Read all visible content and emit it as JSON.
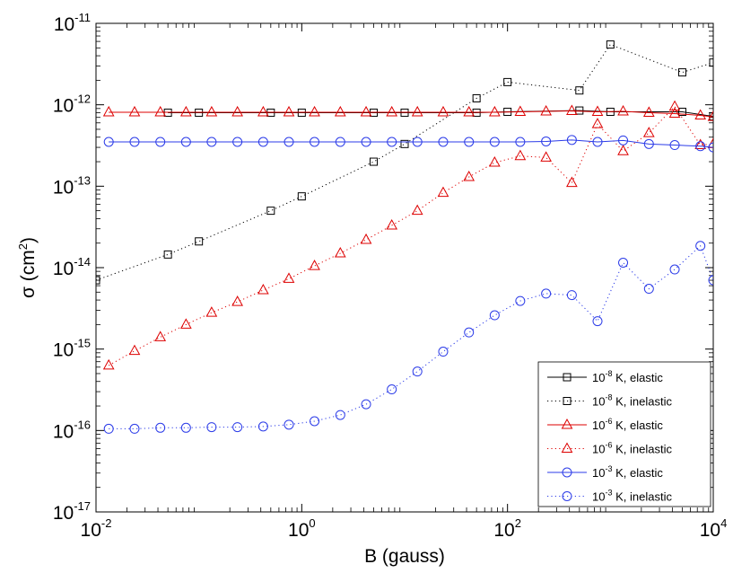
{
  "chart_data": {
    "type": "line",
    "title": "",
    "xlabel": "B (gauss)",
    "ylabel_parts": {
      "main": "σ (cm",
      "exp": "2",
      "close": ")"
    },
    "xscale": "log",
    "yscale": "log",
    "xlim": [
      0.01,
      10000
    ],
    "ylim": [
      1e-17,
      1e-11
    ],
    "grid": false,
    "legend_position": "bottom-right",
    "x_ticks": [
      {
        "value": 0.01,
        "base": "10",
        "exp": "-2"
      },
      {
        "value": 1,
        "base": "10",
        "exp": "0"
      },
      {
        "value": 100,
        "base": "10",
        "exp": "2"
      },
      {
        "value": 10000,
        "base": "10",
        "exp": "4"
      }
    ],
    "y_ticks": [
      {
        "value": 1e-17,
        "base": "10",
        "exp": "-17"
      },
      {
        "value": 1e-16,
        "base": "10",
        "exp": "-16"
      },
      {
        "value": 1e-15,
        "base": "10",
        "exp": "-15"
      },
      {
        "value": 1e-14,
        "base": "10",
        "exp": "-14"
      },
      {
        "value": 1e-13,
        "base": "10",
        "exp": "-13"
      },
      {
        "value": 1e-12,
        "base": "10",
        "exp": "-12"
      },
      {
        "value": 1e-11,
        "base": "10",
        "exp": "-11"
      }
    ],
    "series": [
      {
        "name": "1e-8 K elastic",
        "label": {
          "base": "10",
          "exp": "-8",
          "rest": " K, elastic"
        },
        "color": "#000000",
        "dash": "solid",
        "marker": "square",
        "x": [
          0.05,
          0.1,
          0.5,
          1,
          5,
          10,
          50,
          100,
          500,
          1000,
          5000,
          10000
        ],
        "y": [
          8e-13,
          8e-13,
          8e-13,
          8e-13,
          8e-13,
          8e-13,
          8e-13,
          8.2e-13,
          8.5e-13,
          8.2e-13,
          8.2e-13,
          7.2e-13
        ]
      },
      {
        "name": "1e-8 K inelastic",
        "label": {
          "base": "10",
          "exp": "-8",
          "rest": " K, inelastic"
        },
        "color": "#000000",
        "dash": "dotted",
        "marker": "square",
        "x": [
          0.01,
          0.05,
          0.1,
          0.5,
          1,
          5,
          10,
          50,
          100,
          500,
          1000,
          5000,
          10000
        ],
        "y": [
          7e-15,
          1.45e-14,
          2.1e-14,
          5e-14,
          7.5e-14,
          2e-13,
          3.3e-13,
          1.2e-12,
          1.9e-12,
          1.5e-12,
          5.5e-12,
          2.5e-12,
          3.3e-12
        ]
      },
      {
        "name": "1e-6 K elastic",
        "label": {
          "base": "10",
          "exp": "-6",
          "rest": " K, elastic"
        },
        "color": "#dd0000",
        "dash": "solid",
        "marker": "triangle",
        "x": [
          0.0133,
          0.0237,
          0.0422,
          0.075,
          0.133,
          0.237,
          0.422,
          0.75,
          1.33,
          2.37,
          4.22,
          7.5,
          13.3,
          23.7,
          42.2,
          75,
          133,
          237,
          422,
          750,
          1330,
          2370,
          4220,
          7500,
          10000
        ],
        "y": [
          8.1e-13,
          8.1e-13,
          8.1e-13,
          8.1e-13,
          8.1e-13,
          8.1e-13,
          8.1e-13,
          8.1e-13,
          8.1e-13,
          8.1e-13,
          8.1e-13,
          8.1e-13,
          8.1e-13,
          8.1e-13,
          8.1e-13,
          8.1e-13,
          8.2e-13,
          8.3e-13,
          8.4e-13,
          8.2e-13,
          8.3e-13,
          8e-13,
          7.8e-13,
          7.4e-13,
          7.1e-13
        ]
      },
      {
        "name": "1e-6 K inelastic",
        "label": {
          "base": "10",
          "exp": "-6",
          "rest": " K, inelastic"
        },
        "color": "#dd0000",
        "dash": "dotted",
        "marker": "triangle",
        "x": [
          0.0133,
          0.0237,
          0.0422,
          0.075,
          0.133,
          0.237,
          0.422,
          0.75,
          1.33,
          2.37,
          4.22,
          7.5,
          13.3,
          23.7,
          42.2,
          75,
          133,
          237,
          422,
          750,
          1330,
          2370,
          4220,
          7500,
          10000
        ],
        "y": [
          6.3e-16,
          9.5e-16,
          1.4e-15,
          2e-15,
          2.8e-15,
          3.8e-15,
          5.3e-15,
          7.3e-15,
          1.05e-14,
          1.5e-14,
          2.2e-14,
          3.3e-14,
          5e-14,
          8.3e-14,
          1.3e-13,
          1.95e-13,
          2.35e-13,
          2.25e-13,
          1.1e-13,
          5.8e-13,
          2.7e-13,
          4.5e-13,
          9.5e-13,
          3.2e-13,
          3.3e-13
        ]
      },
      {
        "name": "1e-3 K elastic",
        "label": {
          "base": "10",
          "exp": "-3",
          "rest": " K, elastic"
        },
        "color": "#2b3be8",
        "dash": "solid",
        "marker": "circle",
        "x": [
          0.0133,
          0.0237,
          0.0422,
          0.075,
          0.133,
          0.237,
          0.422,
          0.75,
          1.33,
          2.37,
          4.22,
          7.5,
          13.3,
          23.7,
          42.2,
          75,
          133,
          237,
          422,
          750,
          1330,
          2370,
          4220,
          7500,
          10000
        ],
        "y": [
          3.5e-13,
          3.5e-13,
          3.5e-13,
          3.5e-13,
          3.5e-13,
          3.5e-13,
          3.5e-13,
          3.5e-13,
          3.5e-13,
          3.5e-13,
          3.5e-13,
          3.5e-13,
          3.5e-13,
          3.5e-13,
          3.5e-13,
          3.5e-13,
          3.5e-13,
          3.55e-13,
          3.7e-13,
          3.5e-13,
          3.65e-13,
          3.3e-13,
          3.2e-13,
          3.1e-13,
          3e-13
        ]
      },
      {
        "name": "1e-3 K inelastic",
        "label": {
          "base": "10",
          "exp": "-3",
          "rest": " K, inelastic"
        },
        "color": "#2b3be8",
        "dash": "dotted",
        "marker": "circle",
        "x": [
          0.0133,
          0.0237,
          0.0422,
          0.075,
          0.133,
          0.237,
          0.422,
          0.75,
          1.33,
          2.37,
          4.22,
          7.5,
          13.3,
          23.7,
          42.2,
          75,
          133,
          237,
          422,
          750,
          1330,
          2370,
          4220,
          7500,
          10000
        ],
        "y": [
          1.05e-16,
          1.05e-16,
          1.08e-16,
          1.08e-16,
          1.1e-16,
          1.1e-16,
          1.12e-16,
          1.18e-16,
          1.3e-16,
          1.55e-16,
          2.1e-16,
          3.2e-16,
          5.3e-16,
          9.3e-16,
          1.6e-15,
          2.6e-15,
          3.9e-15,
          4.8e-15,
          4.6e-15,
          2.2e-15,
          1.15e-14,
          5.5e-15,
          9.5e-15,
          1.85e-14,
          7e-15
        ]
      }
    ]
  }
}
